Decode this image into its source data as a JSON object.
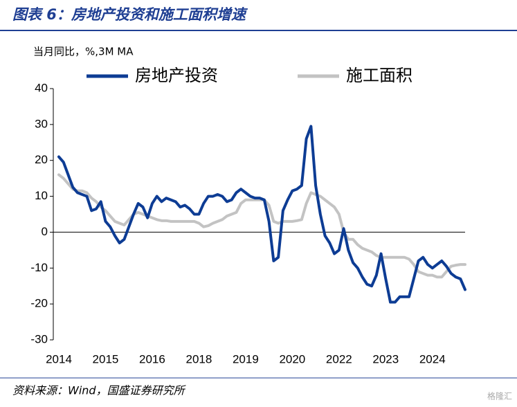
{
  "chart_data": {
    "type": "line",
    "title": "图表 6：房地产投资和施工面积增速",
    "subtitle": "当月同比，%,3M MA",
    "source": "资料来源：Wind，国盛证券研究所",
    "watermark": "格隆汇",
    "categories": [
      "2014",
      null,
      null,
      null,
      null,
      null,
      null,
      null,
      null,
      null,
      "2015",
      null,
      null,
      null,
      null,
      null,
      null,
      null,
      null,
      null,
      "2016",
      null,
      null,
      null,
      null,
      null,
      null,
      null,
      null,
      null,
      "2018",
      null,
      null,
      null,
      null,
      null,
      null,
      null,
      null,
      null,
      "2019",
      null,
      null,
      null,
      null,
      null,
      null,
      null,
      null,
      null,
      "2020",
      null,
      null,
      null,
      null,
      null,
      null,
      null,
      null,
      null,
      "2022",
      null,
      null,
      null,
      null,
      null,
      null,
      null,
      null,
      null,
      "2023",
      null,
      null,
      null,
      null,
      null,
      null,
      null,
      null,
      null,
      "2024",
      null,
      null,
      null,
      null,
      null,
      null,
      null
    ],
    "series": [
      {
        "name": "房地产投资",
        "color": "#0d3c94",
        "values": [
          21,
          19.5,
          16,
          12.5,
          11,
          10.5,
          10,
          6,
          6.5,
          8.5,
          3,
          1.5,
          -1,
          -3,
          -2,
          1.5,
          5,
          8,
          7,
          4,
          8,
          10,
          8.5,
          9.5,
          9,
          8.5,
          7,
          7.5,
          6.5,
          5,
          5,
          8,
          10,
          10,
          10.5,
          10,
          8.5,
          9,
          11,
          12,
          11,
          10,
          9.5,
          9.5,
          9,
          3,
          -8,
          -7,
          6,
          9,
          11.5,
          12,
          13,
          26,
          29.5,
          13,
          5,
          -1,
          -3,
          -6,
          -5,
          1,
          -5,
          -8.5,
          -10,
          -12.5,
          -14.5,
          -15,
          -12,
          -6,
          -13,
          -19.5,
          -19.5,
          -18,
          -18,
          -18,
          -13,
          -8,
          -7,
          -9,
          -10,
          -9,
          -8,
          -9.5,
          -11.5,
          -12.5,
          -13,
          -16
        ]
      },
      {
        "name": "施工面积",
        "color": "#c3c3c3",
        "values": [
          16,
          15,
          13.5,
          12,
          11.5,
          11.5,
          11,
          9.5,
          8.5,
          7,
          6,
          4.5,
          3,
          2.5,
          2,
          3.5,
          5,
          5.5,
          5,
          4.5,
          4,
          3.5,
          3.2,
          3.2,
          3,
          3,
          3,
          3,
          3,
          3,
          2.5,
          1.5,
          1.8,
          2.5,
          3,
          3.5,
          4.5,
          5,
          5.5,
          8,
          9,
          9,
          9,
          9,
          9,
          7.5,
          3,
          2.5,
          3,
          3,
          3,
          3.2,
          3.5,
          8,
          11,
          10.5,
          10,
          9,
          8,
          7,
          5,
          0,
          -2,
          -2,
          -3.5,
          -4.5,
          -5,
          -5.5,
          -6.5,
          -7,
          -7,
          -7,
          -7,
          -7,
          -7,
          -7.5,
          -9,
          -11,
          -11.5,
          -12,
          -12,
          -12.5,
          -12.5,
          -11,
          -9.5,
          -9.2,
          -9,
          -9
        ]
      }
    ],
    "ylim": [
      -30,
      40
    ],
    "yticks": [
      -30,
      -20,
      -10,
      0,
      10,
      20,
      30,
      40
    ]
  }
}
